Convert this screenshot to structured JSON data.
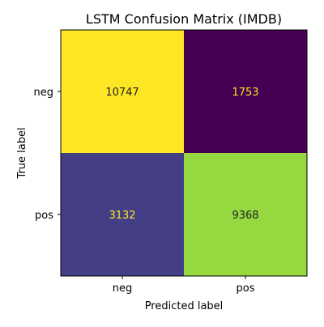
{
  "chart_data": {
    "type": "heatmap",
    "title": "LSTM Confusion Matrix (IMDB)",
    "xlabel": "Predicted label",
    "ylabel": "True label",
    "x_categories": [
      "neg",
      "pos"
    ],
    "y_categories": [
      "neg",
      "pos"
    ],
    "values": [
      [
        10747,
        1753
      ],
      [
        3132,
        9368
      ]
    ],
    "colormap": "viridis",
    "cell_colors": [
      [
        "#fde725",
        "#440154"
      ],
      [
        "#433e85",
        "#95d840"
      ]
    ],
    "text_colors": [
      [
        "#222222",
        "#fde725"
      ],
      [
        "#fde725",
        "#222222"
      ]
    ],
    "colorbar": false,
    "grid": false
  }
}
